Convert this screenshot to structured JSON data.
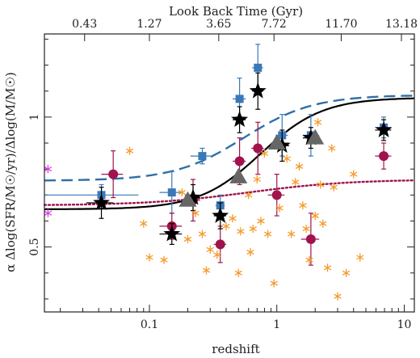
{
  "chart_data": {
    "type": "scatter",
    "xscale": "log",
    "xlim": [
      0.015,
      12
    ],
    "ylim": [
      0.25,
      1.32
    ],
    "xlabel": "redshift",
    "ylabel": "α  Δlog(SFR/M☉/yr)/Δlog(M/M☉)",
    "top_axis_label": "Look Back Time (Gyr)",
    "x_ticks": [
      {
        "value": 0.1,
        "label": "0.1"
      },
      {
        "value": 1,
        "label": "1"
      },
      {
        "value": 10,
        "label": "10"
      }
    ],
    "y_ticks": [
      {
        "value": 0.5,
        "label": "0.5"
      },
      {
        "value": 1,
        "label": "1"
      }
    ],
    "top_ticks": [
      {
        "z": 0.031,
        "label": "0.43"
      },
      {
        "z": 0.1,
        "label": "1.27"
      },
      {
        "z": 0.35,
        "label": "3.65"
      },
      {
        "z": 0.95,
        "label": "7.72"
      },
      {
        "z": 3.2,
        "label": "11.70"
      },
      {
        "z": 9.5,
        "label": "13.18"
      }
    ],
    "colors": {
      "blue": "#3a78b8",
      "crimson": "#a0134d",
      "orange": "#f59a2a",
      "magenta": "#e040e0",
      "black": "#000000",
      "gray": "#666666"
    },
    "series": [
      {
        "marker": "square",
        "color": "#3a78b8",
        "points": [
          {
            "x": 0.042,
            "y": 0.7,
            "ey": 0.04,
            "ex": 0.04
          },
          {
            "x": 0.15,
            "y": 0.71,
            "ey": 0.08,
            "ex": 0.03
          },
          {
            "x": 0.26,
            "y": 0.85,
            "ey": 0.03,
            "ex": 0.05
          },
          {
            "x": 0.36,
            "y": 0.66,
            "ey": 0.04,
            "ex": 0.03
          },
          {
            "x": 0.51,
            "y": 1.07,
            "ey": 0.08,
            "ex": 0.06
          },
          {
            "x": 0.71,
            "y": 1.19,
            "ey": 0.09,
            "ex": 0.07
          },
          {
            "x": 1.1,
            "y": 0.93,
            "ey": 0.08,
            "ex": 0.12
          },
          {
            "x": 1.85,
            "y": 0.93,
            "ey": 0.08,
            "ex": 0.25
          },
          {
            "x": 6.9,
            "y": 0.96,
            "ey": 0.04,
            "ex": 1.0
          }
        ]
      },
      {
        "marker": "circle",
        "color": "#a0134d",
        "points": [
          {
            "x": 0.052,
            "y": 0.78,
            "ey": 0.09,
            "ex": 0.01
          },
          {
            "x": 0.15,
            "y": 0.58,
            "ey": 0.05,
            "ex": 0.03
          },
          {
            "x": 0.22,
            "y": 0.68,
            "ey": 0.08,
            "ex": 0.03
          },
          {
            "x": 0.36,
            "y": 0.51,
            "ey": 0.07,
            "ex": 0.04
          },
          {
            "x": 0.51,
            "y": 0.83,
            "ey": 0.09,
            "ex": 0.06
          },
          {
            "x": 0.71,
            "y": 0.88,
            "ey": 0.1,
            "ex": 0.08
          },
          {
            "x": 1.0,
            "y": 0.7,
            "ey": 0.08,
            "ex": 0.15
          },
          {
            "x": 1.85,
            "y": 0.53,
            "ey": 0.1,
            "ex": 0.3
          },
          {
            "x": 6.9,
            "y": 0.85,
            "ey": 0.05,
            "ex": 1.0
          }
        ]
      },
      {
        "marker": "star",
        "color": "#000000",
        "points": [
          {
            "x": 0.042,
            "y": 0.67,
            "ey": 0.06,
            "ex": 0.01
          },
          {
            "x": 0.15,
            "y": 0.55,
            "ey": 0.04,
            "ex": 0.03
          },
          {
            "x": 0.22,
            "y": 0.69,
            "ey": 0.05,
            "ex": 0.03
          },
          {
            "x": 0.36,
            "y": 0.62,
            "ey": 0.05,
            "ex": 0.04
          },
          {
            "x": 0.51,
            "y": 0.99,
            "ey": 0.05,
            "ex": 0.06
          },
          {
            "x": 0.71,
            "y": 1.1,
            "ey": 0.07,
            "ex": 0.07
          },
          {
            "x": 1.1,
            "y": 0.89,
            "ey": 0.06,
            "ex": 0.15
          },
          {
            "x": 1.85,
            "y": 0.92,
            "ey": 0.04,
            "ex": 0.25
          },
          {
            "x": 6.9,
            "y": 0.95,
            "ey": 0.04,
            "ex": 1.0
          }
        ]
      },
      {
        "marker": "triangle",
        "color": "#666666",
        "points": [
          {
            "x": 0.2,
            "y": 0.68
          },
          {
            "x": 0.5,
            "y": 0.77
          },
          {
            "x": 1.0,
            "y": 0.9
          },
          {
            "x": 2.0,
            "y": 0.92
          }
        ]
      },
      {
        "marker": "asterisk",
        "color": "#f59a2a",
        "points": [
          {
            "x": 0.07,
            "y": 0.87
          },
          {
            "x": 0.09,
            "y": 0.59
          },
          {
            "x": 0.1,
            "y": 0.46
          },
          {
            "x": 0.13,
            "y": 0.45
          },
          {
            "x": 0.18,
            "y": 0.71
          },
          {
            "x": 0.2,
            "y": 0.53
          },
          {
            "x": 0.23,
            "y": 0.63
          },
          {
            "x": 0.26,
            "y": 0.55
          },
          {
            "x": 0.28,
            "y": 0.41
          },
          {
            "x": 0.3,
            "y": 0.49
          },
          {
            "x": 0.34,
            "y": 0.47
          },
          {
            "x": 0.4,
            "y": 0.58
          },
          {
            "x": 0.45,
            "y": 0.61
          },
          {
            "x": 0.5,
            "y": 0.4
          },
          {
            "x": 0.52,
            "y": 0.56
          },
          {
            "x": 0.6,
            "y": 0.7
          },
          {
            "x": 0.62,
            "y": 0.48
          },
          {
            "x": 0.65,
            "y": 0.57
          },
          {
            "x": 0.7,
            "y": 0.76
          },
          {
            "x": 0.75,
            "y": 0.6
          },
          {
            "x": 0.8,
            "y": 0.86
          },
          {
            "x": 0.85,
            "y": 0.55
          },
          {
            "x": 0.95,
            "y": 0.36
          },
          {
            "x": 1.05,
            "y": 0.65
          },
          {
            "x": 1.2,
            "y": 0.84
          },
          {
            "x": 1.3,
            "y": 0.55
          },
          {
            "x": 1.4,
            "y": 0.75
          },
          {
            "x": 1.6,
            "y": 0.66
          },
          {
            "x": 1.7,
            "y": 0.57
          },
          {
            "x": 1.8,
            "y": 0.45
          },
          {
            "x": 2.0,
            "y": 0.62
          },
          {
            "x": 2.1,
            "y": 0.98
          },
          {
            "x": 2.3,
            "y": 0.59
          },
          {
            "x": 2.5,
            "y": 0.42
          },
          {
            "x": 2.8,
            "y": 0.73
          },
          {
            "x": 3.0,
            "y": 0.31
          },
          {
            "x": 3.5,
            "y": 0.4
          },
          {
            "x": 4.0,
            "y": 0.78
          },
          {
            "x": 4.5,
            "y": 0.46
          },
          {
            "x": 2.7,
            "y": 0.88
          },
          {
            "x": 2.2,
            "y": 0.74
          },
          {
            "x": 1.5,
            "y": 0.81
          }
        ]
      },
      {
        "marker": "asterisk",
        "color": "#e040e0",
        "points": [
          {
            "x": 0.016,
            "y": 0.8
          },
          {
            "x": 0.016,
            "y": 0.63
          }
        ]
      }
    ],
    "curves": [
      {
        "style": "solid",
        "color": "#000000",
        "low": 0.645,
        "high": 1.075,
        "mid": 0.75,
        "slope": 1.8
      },
      {
        "style": "dashed",
        "color": "#2e6fa8",
        "low": 0.755,
        "high": 1.085,
        "mid": 0.55,
        "slope": 1.6
      },
      {
        "style": "dotted",
        "color": "#a0134d",
        "low": 0.66,
        "high": 0.76,
        "mid": 0.6,
        "slope": 1.1
      }
    ]
  }
}
